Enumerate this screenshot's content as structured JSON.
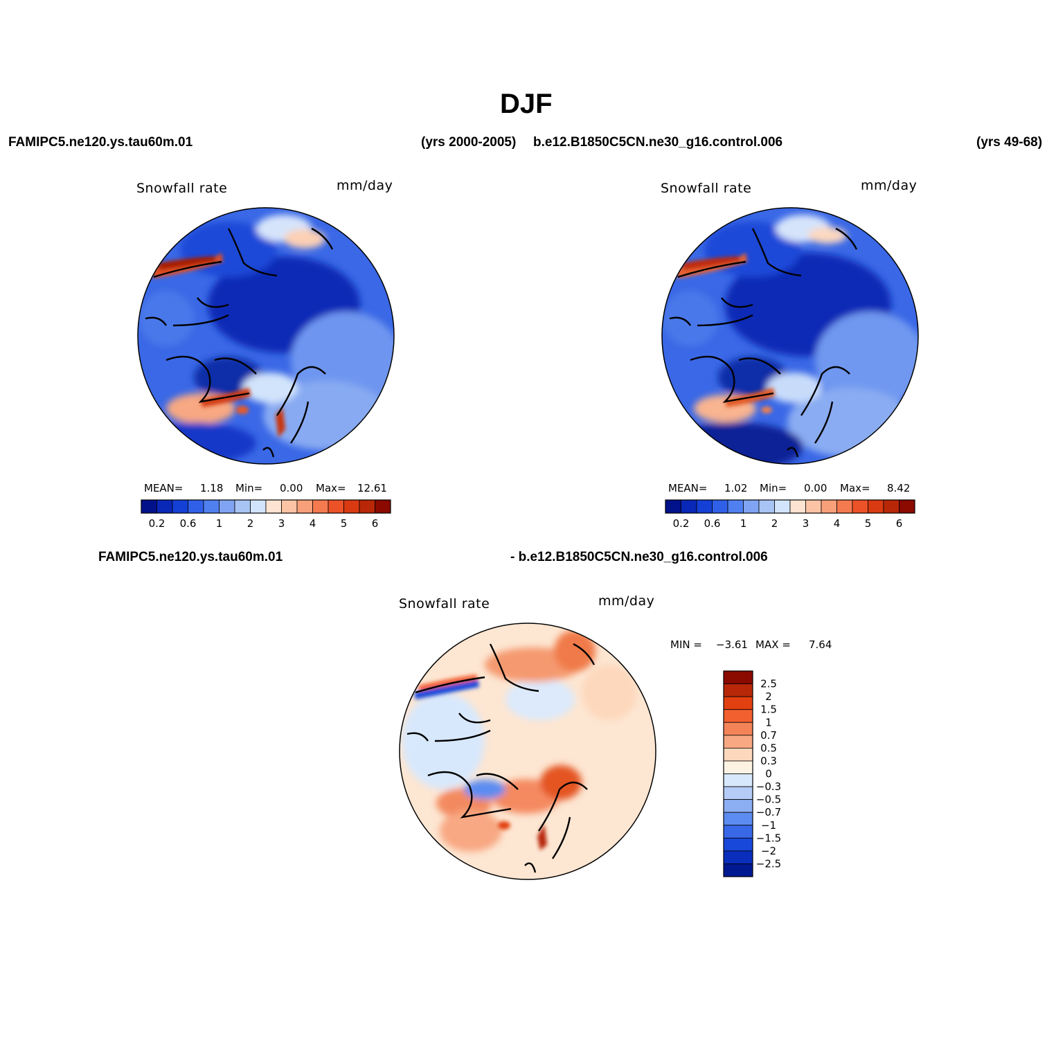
{
  "title": "DJF",
  "header": {
    "case1": "FAMIPC5.ne120.ys.tau60m.01",
    "years1": "(yrs 2000-2005)",
    "case2": "b.e12.B1850C5CN.ne30_g16.control.006",
    "years2": "(yrs 49-68)"
  },
  "diff_header": {
    "left": "FAMIPC5.ne120.ys.tau60m.01",
    "right": "- b.e12.B1850C5CN.ne30_g16.control.006"
  },
  "panels": [
    {
      "variable": "Snowfall rate",
      "units": "mm/day",
      "stats": {
        "mean_label": "MEAN=",
        "mean": "1.18",
        "min_label": "Min=",
        "min": "0.00",
        "max_label": "Max=",
        "max": "12.61"
      }
    },
    {
      "variable": "Snowfall rate",
      "units": "mm/day",
      "stats": {
        "mean_label": "MEAN=",
        "mean": "1.02",
        "min_label": "Min=",
        "min": "0.00",
        "max_label": "Max=",
        "max": "8.42"
      }
    }
  ],
  "diff_panel": {
    "variable": "Snowfall rate",
    "units": "mm/day",
    "stats": {
      "min_label": "MIN =",
      "min": "−3.61",
      "max_label": "MAX =",
      "max": "7.64"
    }
  },
  "colorbar": {
    "colors": [
      "#00118a",
      "#0a28b8",
      "#1540d6",
      "#3060e8",
      "#5080f0",
      "#80a4f2",
      "#a8c4f5",
      "#d2e4fb",
      "#fde4d2",
      "#fcc4a4",
      "#f8a07a",
      "#f47a50",
      "#ec5228",
      "#d93a12",
      "#b82808",
      "#8a0a00"
    ],
    "labels": [
      "0.2",
      "0.6",
      "1",
      "2",
      "3",
      "4",
      "5",
      "6"
    ]
  },
  "diff_colorbar": {
    "colors": [
      "#8a0a00",
      "#b82808",
      "#e24010",
      "#f26030",
      "#f48458",
      "#f8a882",
      "#fdd8bc",
      "#fdf3e4",
      "#d8e8fc",
      "#b4ccf6",
      "#8caef2",
      "#5c8cf0",
      "#3868e8",
      "#1848da",
      "#0a2ebc",
      "#001890"
    ],
    "labels": [
      "2.5",
      "2",
      "1.5",
      "1",
      "0.7",
      "0.5",
      "0.3",
      "0",
      "−0.3",
      "−0.5",
      "−0.7",
      "−1",
      "−1.5",
      "−2",
      "−2.5"
    ]
  }
}
